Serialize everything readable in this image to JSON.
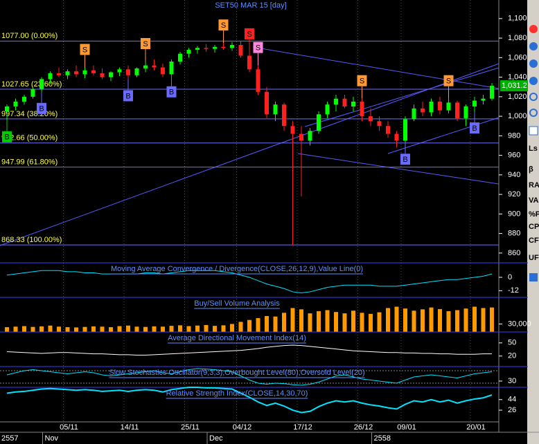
{
  "title": "SET50 MAR 15   [day]",
  "toolbar": [
    "Ls",
    "β",
    "RA",
    "VA",
    "%P",
    "CP",
    "CF",
    "UF"
  ],
  "chart_data": [
    {
      "type": "candlestick",
      "categories": [
        null,
        null,
        null,
        null,
        null,
        null,
        null,
        "05/11",
        null,
        null,
        null,
        null,
        null,
        null,
        "14/11",
        null,
        null,
        null,
        null,
        null,
        null,
        "25/11",
        null,
        null,
        null,
        null,
        null,
        "04/12",
        null,
        null,
        null,
        null,
        null,
        null,
        "17/12",
        null,
        null,
        null,
        null,
        null,
        null,
        "26/12",
        null,
        null,
        null,
        null,
        "09/01",
        null,
        null,
        null,
        null,
        null,
        null,
        null,
        "20/01",
        null,
        null
      ],
      "periods": [
        "2557",
        null,
        null,
        null,
        null,
        "Nov",
        null,
        null,
        null,
        null,
        null,
        null,
        null,
        null,
        null,
        null,
        null,
        null,
        null,
        null,
        null,
        null,
        null,
        null,
        "Dec",
        null,
        null,
        null,
        null,
        null,
        null,
        null,
        null,
        null,
        null,
        null,
        null,
        null,
        null,
        null,
        null,
        null,
        null,
        "2558",
        null,
        null,
        null,
        null,
        null,
        null,
        null,
        null,
        null,
        null,
        null,
        null,
        null
      ],
      "open": [
        1005,
        1010,
        1015,
        1020,
        1028,
        1038,
        1044,
        1042,
        1046,
        1043,
        1047,
        1044,
        1040,
        1045,
        1048,
        1042,
        1049,
        1052,
        1050,
        1043,
        1056,
        1064,
        1068,
        1070,
        1069,
        1071,
        1070,
        1073,
        1062,
        1048,
        1025,
        1002,
        1012,
        990,
        982,
        975,
        985,
        1002,
        1012,
        1018,
        1010,
        1015,
        1000,
        995,
        990,
        982,
        975,
        997,
        1008,
        1004,
        1015,
        1006,
        1014,
        998,
        1010,
        1016,
        1018
      ],
      "high": [
        1012,
        1018,
        1022,
        1030,
        1040,
        1046,
        1050,
        1048,
        1052,
        1050,
        1052,
        1049,
        1046,
        1050,
        1052,
        1050,
        1056,
        1058,
        1054,
        1058,
        1066,
        1070,
        1072,
        1074,
        1073,
        1075,
        1076,
        1077,
        1066,
        1052,
        1030,
        1015,
        1014,
        995,
        990,
        988,
        1005,
        1015,
        1022,
        1022,
        1020,
        1018,
        1008,
        1000,
        995,
        985,
        1000,
        1012,
        1015,
        1018,
        1020,
        1018,
        1016,
        1012,
        1020,
        1022,
        1034
      ],
      "low": [
        996,
        1006,
        1012,
        1018,
        1025,
        1033,
        1040,
        1038,
        1040,
        1039,
        1042,
        1038,
        1036,
        1041,
        1038,
        1040,
        1045,
        1047,
        1040,
        1042,
        1053,
        1060,
        1064,
        1066,
        1065,
        1068,
        1067,
        1060,
        1045,
        1022,
        998,
        995,
        985,
        868,
        918,
        970,
        982,
        998,
        1005,
        1008,
        1005,
        995,
        990,
        985,
        978,
        968,
        973,
        995,
        1000,
        1000,
        1002,
        1003,
        995,
        990,
        1005,
        1012,
        1016
      ],
      "close": [
        1010,
        1015,
        1020,
        1028,
        1038,
        1044,
        1042,
        1046,
        1043,
        1047,
        1044,
        1040,
        1045,
        1048,
        1042,
        1049,
        1052,
        1050,
        1043,
        1056,
        1064,
        1068,
        1070,
        1069,
        1071,
        1070,
        1073,
        1062,
        1048,
        1025,
        1002,
        1012,
        990,
        982,
        975,
        985,
        1002,
        1012,
        1018,
        1010,
        1015,
        1000,
        995,
        990,
        982,
        975,
        997,
        1008,
        1004,
        1015,
        1006,
        1014,
        998,
        1010,
        1016,
        1018,
        1031.2
      ],
      "up_color": "#00ff00",
      "down_color": "#ff2020",
      "ylim": [
        850,
        1119
      ],
      "yticks": [
        {
          "value": 1100,
          "label": "1,100"
        },
        {
          "value": 1080,
          "label": "1,080"
        },
        {
          "value": 1060,
          "label": "1,060"
        },
        {
          "value": 1040,
          "label": "1,040"
        },
        {
          "value": 1020,
          "label": "1,020"
        },
        {
          "value": 1000,
          "label": "1,000"
        },
        980,
        960,
        940,
        920,
        900,
        880,
        860
      ],
      "levels": [
        {
          "value": 1077.0,
          "label": "1077.00 (0.00%)"
        },
        {
          "value": 1027.65,
          "label": "1027.65 (23.60%)"
        },
        {
          "value": 997.34,
          "label": "997.34 (38.20%)"
        },
        {
          "value": 972.66,
          "label": "972.66 (50.00%)"
        },
        {
          "value": 947.99,
          "label": "947.99 (61.80%)"
        },
        {
          "value": 868.33,
          "label": "868.33 (100.00%)"
        }
      ],
      "last_price": {
        "value": 1031.2,
        "label": "1,031.2"
      },
      "signals": [
        {
          "label": "B",
          "index": 0,
          "color": "#00cc00"
        },
        {
          "label": "B",
          "index": 4,
          "color": "#6a6aff"
        },
        {
          "label": "S",
          "index": 9,
          "color": "#ff9933"
        },
        {
          "label": "B",
          "index": 14,
          "color": "#6a6aff"
        },
        {
          "label": "S",
          "index": 16,
          "color": "#ff9933"
        },
        {
          "label": "B",
          "index": 19,
          "color": "#6a6aff"
        },
        {
          "label": "S",
          "index": 25,
          "color": "#ff9933"
        },
        {
          "label": "S",
          "index": 28,
          "color": "#ff2020"
        },
        {
          "label": "S",
          "index": 29,
          "color": "#ff88dd"
        },
        {
          "label": "S",
          "index": 41,
          "color": "#ff9933"
        },
        {
          "label": "B",
          "index": 46,
          "color": "#6a6aff"
        },
        {
          "label": "S",
          "index": 51,
          "color": "#ff9933"
        },
        {
          "label": "B",
          "index": 54,
          "color": "#6a6aff"
        }
      ]
    },
    {
      "type": "line",
      "title": "Moving Average Convergence / Divergence(CLOSE,26,12,9),Value Line(0)",
      "values": [
        2,
        3,
        4,
        5,
        6,
        6,
        6,
        5,
        5,
        4,
        4,
        3,
        3,
        3,
        3,
        3,
        4,
        4,
        3,
        4,
        5,
        6,
        6,
        6,
        6,
        5,
        4,
        2,
        0,
        -3,
        -6,
        -8,
        -10,
        -13,
        -14,
        -13,
        -11,
        -9,
        -8,
        -7,
        -7,
        -7,
        -7,
        -8,
        -8,
        -8,
        -7,
        -6,
        -5,
        -4,
        -3,
        -2,
        -2,
        -1,
        0,
        1,
        3
      ],
      "color": "#00e5ff",
      "ylim": [
        -18,
        13
      ],
      "yticks": [
        0,
        -12
      ]
    },
    {
      "type": "bar",
      "title": "Buy/Sell Volume Analysis",
      "values": [
        18000,
        20000,
        22000,
        19000,
        21000,
        24000,
        20000,
        18000,
        17000,
        19000,
        21000,
        20000,
        18000,
        22000,
        24000,
        20000,
        19000,
        21000,
        20000,
        23000,
        25000,
        22000,
        24000,
        26000,
        23000,
        25000,
        30000,
        38000,
        45000,
        52000,
        60000,
        58000,
        72000,
        90000,
        85000,
        70000,
        78000,
        82000,
        75000,
        70000,
        80000,
        72000,
        68000,
        74000,
        90000,
        95000,
        88000,
        80000,
        85000,
        92000,
        86000,
        78000,
        82000,
        88000,
        95000,
        90000,
        92000
      ],
      "color": "#ff9900",
      "ylim": [
        0,
        130000
      ],
      "yticks": [
        {
          "value": 30000,
          "label": "30,000"
        }
      ]
    },
    {
      "type": "line",
      "title": "Average Directional Movement Index(14)",
      "values": [
        30,
        29,
        28,
        27,
        26,
        27,
        28,
        28,
        27,
        26,
        25,
        25,
        24,
        23,
        23,
        22,
        22,
        23,
        24,
        25,
        26,
        27,
        28,
        29,
        30,
        31,
        32,
        33,
        35,
        37,
        40,
        42,
        44,
        45,
        44,
        42,
        40,
        38,
        36,
        34,
        32,
        31,
        30,
        29,
        28,
        28,
        27,
        27,
        26,
        26,
        25,
        25,
        24,
        24,
        24,
        25,
        25
      ],
      "color": "#ffffff",
      "ylim": [
        -4,
        75
      ],
      "yticks": [
        50,
        20
      ]
    },
    {
      "type": "line",
      "title": "Slow Stochastics Oscillator(9,3,3),Overbought Level(80),Oversold Level(20)",
      "values": [
        60,
        70,
        80,
        85,
        80,
        75,
        70,
        65,
        70,
        75,
        70,
        60,
        55,
        60,
        65,
        70,
        75,
        80,
        70,
        65,
        75,
        85,
        90,
        88,
        85,
        80,
        75,
        55,
        35,
        20,
        15,
        20,
        18,
        12,
        10,
        15,
        25,
        40,
        55,
        60,
        50,
        40,
        35,
        30,
        25,
        20,
        35,
        50,
        55,
        60,
        55,
        50,
        45,
        55,
        65,
        70,
        75
      ],
      "color": "#00e5ff",
      "ylim": [
        0,
        100
      ],
      "yticks": [
        30
      ],
      "levels": [
        80,
        20
      ]
    },
    {
      "type": "line",
      "title": "Relative Strength Index(CLOSE,14,30,70)",
      "values": [
        55,
        57,
        58,
        60,
        62,
        63,
        62,
        61,
        60,
        61,
        60,
        58,
        59,
        60,
        58,
        60,
        61,
        60,
        57,
        61,
        63,
        65,
        65,
        64,
        64,
        63,
        62,
        55,
        48,
        40,
        34,
        38,
        33,
        26,
        22,
        24,
        32,
        38,
        42,
        40,
        42,
        38,
        35,
        33,
        30,
        28,
        36,
        42,
        40,
        44,
        40,
        43,
        38,
        42,
        45,
        47,
        52
      ],
      "color": "#00e5ff",
      "ylim": [
        6,
        65
      ],
      "yticks": [
        44,
        26
      ]
    }
  ]
}
